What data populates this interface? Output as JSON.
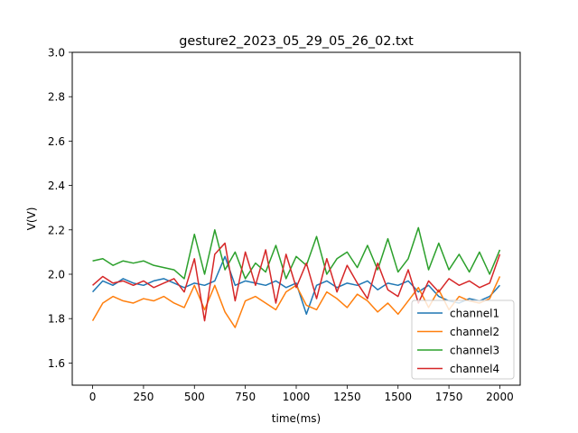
{
  "chart_data": {
    "type": "line",
    "title": "gesture2_2023_05_29_05_26_02.txt",
    "xlabel": "time(ms)",
    "ylabel": "V(V)",
    "xlim": [
      -100,
      2100
    ],
    "ylim": [
      1.5,
      3.0
    ],
    "x_ticks": [
      0,
      250,
      500,
      750,
      1000,
      1250,
      1500,
      1750,
      2000
    ],
    "y_ticks": [
      1.6,
      1.8,
      2.0,
      2.2,
      2.4,
      2.6,
      2.8,
      3.0
    ],
    "grid": false,
    "legend_position": "lower-right",
    "series": [
      {
        "name": "channel1",
        "color": "#1f77b4",
        "x": [
          0,
          50,
          100,
          150,
          200,
          250,
          300,
          350,
          400,
          450,
          500,
          550,
          600,
          650,
          700,
          750,
          800,
          850,
          900,
          950,
          1000,
          1050,
          1100,
          1150,
          1200,
          1250,
          1300,
          1350,
          1400,
          1450,
          1500,
          1550,
          1600,
          1650,
          1700,
          1750,
          1800,
          1850,
          1900,
          1950,
          2000
        ],
        "values": [
          1.92,
          1.97,
          1.95,
          1.98,
          1.96,
          1.95,
          1.97,
          1.98,
          1.96,
          1.94,
          1.96,
          1.95,
          1.97,
          2.08,
          1.95,
          1.97,
          1.96,
          1.95,
          1.97,
          1.94,
          1.96,
          1.82,
          1.95,
          1.97,
          1.94,
          1.96,
          1.95,
          1.97,
          1.93,
          1.96,
          1.95,
          1.97,
          1.92,
          1.95,
          1.9,
          1.88,
          1.87,
          1.89,
          1.88,
          1.9,
          1.95
        ]
      },
      {
        "name": "channel2",
        "color": "#ff7f0e",
        "x": [
          0,
          50,
          100,
          150,
          200,
          250,
          300,
          350,
          400,
          450,
          500,
          550,
          600,
          650,
          700,
          750,
          800,
          850,
          900,
          950,
          1000,
          1050,
          1100,
          1150,
          1200,
          1250,
          1300,
          1350,
          1400,
          1450,
          1500,
          1550,
          1600,
          1650,
          1700,
          1750,
          1800,
          1850,
          1900,
          1950,
          2000
        ],
        "values": [
          1.79,
          1.87,
          1.9,
          1.88,
          1.87,
          1.89,
          1.88,
          1.9,
          1.87,
          1.85,
          1.95,
          1.84,
          1.95,
          1.83,
          1.76,
          1.88,
          1.9,
          1.87,
          1.84,
          1.92,
          1.95,
          1.86,
          1.84,
          1.92,
          1.89,
          1.85,
          1.91,
          1.88,
          1.83,
          1.87,
          1.82,
          1.88,
          1.94,
          1.85,
          1.93,
          1.84,
          1.9,
          1.88,
          1.87,
          1.89,
          1.99
        ]
      },
      {
        "name": "channel3",
        "color": "#2ca02c",
        "x": [
          0,
          50,
          100,
          150,
          200,
          250,
          300,
          350,
          400,
          450,
          500,
          550,
          600,
          650,
          700,
          750,
          800,
          850,
          900,
          950,
          1000,
          1050,
          1100,
          1150,
          1200,
          1250,
          1300,
          1350,
          1400,
          1450,
          1500,
          1550,
          1600,
          1650,
          1700,
          1750,
          1800,
          1850,
          1900,
          1950,
          2000
        ],
        "values": [
          2.06,
          2.07,
          2.04,
          2.06,
          2.05,
          2.06,
          2.04,
          2.03,
          2.02,
          1.98,
          2.18,
          2.0,
          2.2,
          2.02,
          2.1,
          1.98,
          2.05,
          2.01,
          2.13,
          1.98,
          2.08,
          2.04,
          2.17,
          2.0,
          2.07,
          2.1,
          2.03,
          2.13,
          2.02,
          2.16,
          2.01,
          2.07,
          2.21,
          2.02,
          2.14,
          2.02,
          2.09,
          2.01,
          2.1,
          2.0,
          2.11
        ]
      },
      {
        "name": "channel4",
        "color": "#d62728",
        "x": [
          0,
          50,
          100,
          150,
          200,
          250,
          300,
          350,
          400,
          450,
          500,
          550,
          600,
          650,
          700,
          750,
          800,
          850,
          900,
          950,
          1000,
          1050,
          1100,
          1150,
          1200,
          1250,
          1300,
          1350,
          1400,
          1450,
          1500,
          1550,
          1600,
          1650,
          1700,
          1750,
          1800,
          1850,
          1900,
          1950,
          2000
        ],
        "values": [
          1.95,
          1.99,
          1.96,
          1.97,
          1.95,
          1.97,
          1.94,
          1.96,
          1.98,
          1.92,
          2.07,
          1.79,
          2.09,
          2.14,
          1.88,
          2.1,
          1.95,
          2.11,
          1.87,
          2.09,
          1.94,
          2.05,
          1.89,
          2.07,
          1.92,
          2.04,
          1.96,
          1.89,
          2.05,
          1.93,
          1.9,
          2.02,
          1.87,
          1.97,
          1.92,
          1.98,
          1.95,
          1.97,
          1.94,
          1.96,
          2.09
        ]
      }
    ]
  }
}
